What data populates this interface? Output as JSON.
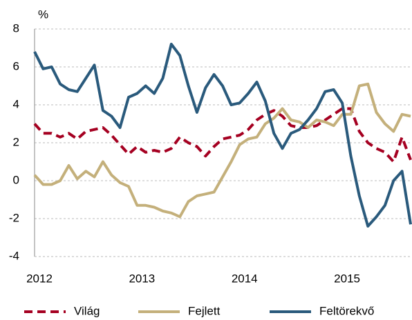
{
  "chart_data": {
    "type": "line",
    "y_label": "%",
    "categories": [
      "2012",
      null,
      null,
      null,
      null,
      null,
      null,
      null,
      null,
      null,
      null,
      null,
      "2013",
      null,
      null,
      null,
      null,
      null,
      null,
      null,
      null,
      null,
      null,
      null,
      "2014",
      null,
      null,
      null,
      null,
      null,
      null,
      null,
      null,
      null,
      null,
      null,
      "2015",
      null,
      null,
      null,
      null,
      null,
      null,
      null,
      null
    ],
    "series": [
      {
        "name": "Világ",
        "color": "#a50021",
        "dashed": true,
        "values": [
          3.0,
          2.5,
          2.5,
          2.3,
          2.5,
          2.2,
          2.6,
          2.7,
          2.8,
          2.4,
          1.9,
          1.4,
          1.8,
          1.5,
          1.6,
          1.5,
          1.7,
          2.3,
          2.0,
          1.8,
          1.3,
          1.8,
          2.2,
          2.3,
          2.4,
          2.7,
          3.2,
          3.5,
          3.7,
          3.4,
          2.9,
          2.8,
          2.8,
          2.9,
          3.2,
          3.5,
          3.8,
          3.8,
          2.6,
          2.0,
          1.7,
          1.5,
          1.0,
          2.3,
          1.1
        ]
      },
      {
        "name": "Fejlett",
        "color": "#c4b07b",
        "dashed": false,
        "values": [
          0.3,
          -0.2,
          -0.2,
          0.0,
          0.8,
          0.1,
          0.5,
          0.2,
          1.0,
          0.3,
          -0.1,
          -0.3,
          -1.3,
          -1.3,
          -1.4,
          -1.6,
          -1.7,
          -1.9,
          -1.1,
          -0.8,
          -0.7,
          -0.6,
          0.2,
          1.0,
          1.9,
          2.2,
          2.3,
          3.0,
          3.3,
          3.8,
          3.2,
          3.1,
          2.8,
          3.2,
          3.1,
          2.9,
          3.5,
          3.5,
          5.0,
          5.1,
          3.6,
          3.0,
          2.6,
          3.5,
          3.4
        ]
      },
      {
        "name": "Feltörekvő",
        "color": "#2a5a7c",
        "dashed": false,
        "values": [
          6.8,
          5.9,
          6.0,
          5.1,
          4.8,
          4.7,
          5.4,
          6.1,
          3.7,
          3.4,
          2.8,
          4.4,
          4.6,
          5.0,
          4.6,
          5.4,
          7.2,
          6.6,
          5.0,
          3.6,
          4.9,
          5.6,
          5.0,
          4.0,
          4.1,
          4.6,
          5.2,
          4.2,
          2.5,
          1.7,
          2.5,
          2.7,
          3.2,
          3.8,
          4.7,
          4.8,
          4.1,
          1.3,
          -0.8,
          -2.4,
          -1.9,
          -1.3,
          0.0,
          0.5,
          -2.3
        ]
      }
    ],
    "ylim": [
      -4,
      8
    ],
    "yticks": [
      -4,
      -2,
      0,
      2,
      4,
      6,
      8
    ],
    "grid": true,
    "legend": "bottom"
  }
}
